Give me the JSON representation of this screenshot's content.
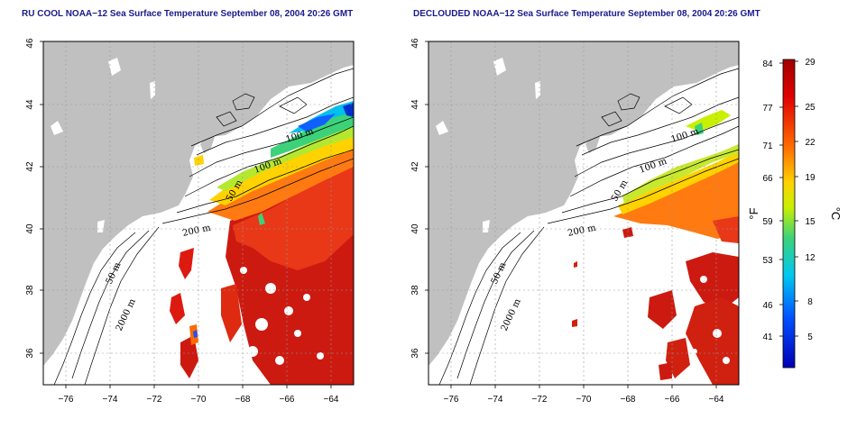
{
  "left_panel": {
    "title": "RU COOL NOAA−12 Sea Surface Temperature September 08, 2004 20:26 GMT"
  },
  "right_panel": {
    "title": "DECLOUDED NOAA−12 Sea Surface Temperature September 08, 2004 20:26 GMT"
  },
  "axes": {
    "lon_ticks": [
      "−76",
      "−74",
      "−72",
      "−70",
      "−68",
      "−66",
      "−64"
    ],
    "lat_ticks": [
      "36",
      "38",
      "40",
      "42",
      "44",
      "46"
    ],
    "lon_range": [
      -77,
      -63
    ],
    "lat_range": [
      35,
      46
    ]
  },
  "contour_labels_left": [
    "100 m",
    "100 m",
    "50 m",
    "200 m",
    "50 m",
    "2000 m"
  ],
  "contour_labels_right": [
    "100 m",
    "100 m",
    "50 m",
    "200 m",
    "50 m",
    "2000 m"
  ],
  "colorbar": {
    "fahrenheit_ticks": [
      "84",
      "77",
      "71",
      "66",
      "59",
      "53",
      "46",
      "41"
    ],
    "celsius_ticks": [
      "29",
      "25",
      "22",
      "19",
      "15",
      "12",
      "8",
      "5"
    ],
    "fahrenheit_unit": "°F",
    "celsius_unit": "°C"
  },
  "colors": {
    "land": "#c0c0c0",
    "title": "#1a1a8c",
    "ramp": [
      "#e00000",
      "#ff6a00",
      "#ffd200",
      "#c8f000",
      "#3cd27a",
      "#00c8f0",
      "#0050ff",
      "#0000b4"
    ]
  }
}
